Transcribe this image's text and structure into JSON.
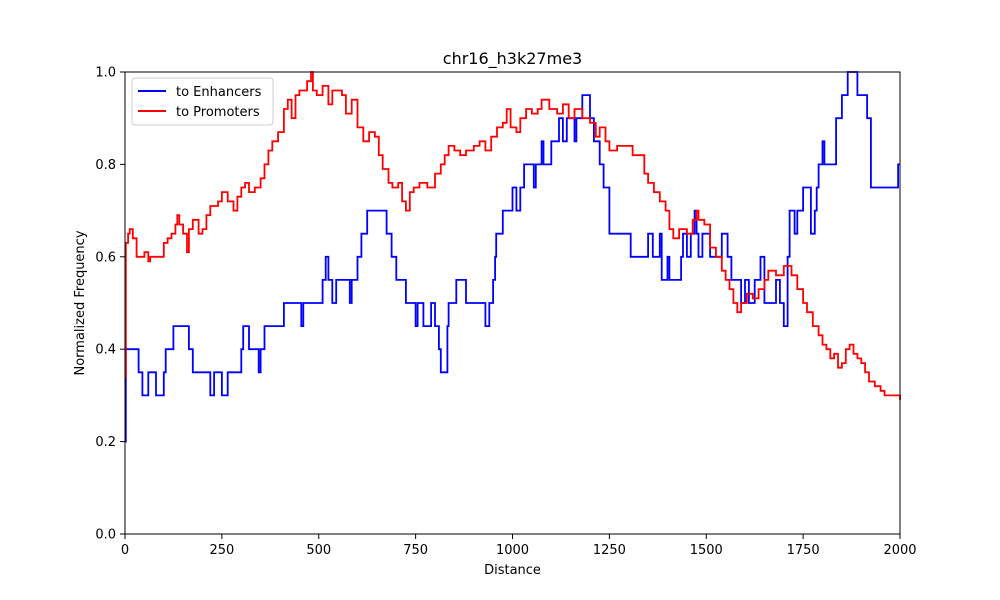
{
  "chart_data": {
    "type": "line",
    "title": "chr16_h3k27me3",
    "xlabel": "Distance",
    "ylabel": "Normalized Frequency",
    "xlim": [
      0,
      2000
    ],
    "ylim": [
      0.0,
      1.0
    ],
    "xticks": [
      0,
      250,
      500,
      750,
      1000,
      1250,
      1500,
      1750,
      2000
    ],
    "xtick_labels": [
      "0",
      "250",
      "500",
      "750",
      "1000",
      "1250",
      "1500",
      "1750",
      "2000"
    ],
    "yticks": [
      0.0,
      0.2,
      0.4,
      0.6,
      0.8,
      1.0
    ],
    "ytick_labels": [
      "0.0",
      "0.2",
      "0.4",
      "0.6",
      "0.8",
      "1.0"
    ],
    "grid": false,
    "legend_position": "upper-left",
    "series": [
      {
        "name": "to Enhancers",
        "color": "#0000ff",
        "step": true,
        "points": [
          [
            0,
            0.2
          ],
          [
            2,
            0.4
          ],
          [
            25,
            0.4
          ],
          [
            35,
            0.35
          ],
          [
            45,
            0.3
          ],
          [
            60,
            0.35
          ],
          [
            80,
            0.3
          ],
          [
            95,
            0.3
          ],
          [
            100,
            0.35
          ],
          [
            105,
            0.4
          ],
          [
            125,
            0.45
          ],
          [
            165,
            0.4
          ],
          [
            175,
            0.35
          ],
          [
            220,
            0.3
          ],
          [
            230,
            0.35
          ],
          [
            250,
            0.3
          ],
          [
            265,
            0.35
          ],
          [
            300,
            0.4
          ],
          [
            305,
            0.45
          ],
          [
            320,
            0.4
          ],
          [
            345,
            0.35
          ],
          [
            350,
            0.4
          ],
          [
            360,
            0.45
          ],
          [
            410,
            0.5
          ],
          [
            455,
            0.45
          ],
          [
            460,
            0.5
          ],
          [
            510,
            0.55
          ],
          [
            518,
            0.6
          ],
          [
            525,
            0.55
          ],
          [
            535,
            0.5
          ],
          [
            545,
            0.55
          ],
          [
            580,
            0.5
          ],
          [
            585,
            0.55
          ],
          [
            600,
            0.6
          ],
          [
            610,
            0.65
          ],
          [
            625,
            0.7
          ],
          [
            675,
            0.65
          ],
          [
            688,
            0.6
          ],
          [
            700,
            0.55
          ],
          [
            725,
            0.5
          ],
          [
            750,
            0.45
          ],
          [
            755,
            0.5
          ],
          [
            770,
            0.45
          ],
          [
            790,
            0.5
          ],
          [
            800,
            0.45
          ],
          [
            810,
            0.4
          ],
          [
            815,
            0.35
          ],
          [
            832,
            0.45
          ],
          [
            835,
            0.5
          ],
          [
            855,
            0.55
          ],
          [
            880,
            0.5
          ],
          [
            930,
            0.45
          ],
          [
            940,
            0.5
          ],
          [
            950,
            0.55
          ],
          [
            955,
            0.6
          ],
          [
            958,
            0.65
          ],
          [
            975,
            0.7
          ],
          [
            1000,
            0.75
          ],
          [
            1010,
            0.7
          ],
          [
            1020,
            0.75
          ],
          [
            1030,
            0.8
          ],
          [
            1055,
            0.75
          ],
          [
            1060,
            0.8
          ],
          [
            1075,
            0.85
          ],
          [
            1080,
            0.8
          ],
          [
            1100,
            0.85
          ],
          [
            1120,
            0.9
          ],
          [
            1130,
            0.85
          ],
          [
            1140,
            0.9
          ],
          [
            1160,
            0.85
          ],
          [
            1165,
            0.9
          ],
          [
            1180,
            0.95
          ],
          [
            1200,
            0.9
          ],
          [
            1210,
            0.85
          ],
          [
            1225,
            0.8
          ],
          [
            1235,
            0.75
          ],
          [
            1250,
            0.65
          ],
          [
            1305,
            0.6
          ],
          [
            1350,
            0.65
          ],
          [
            1362,
            0.6
          ],
          [
            1380,
            0.65
          ],
          [
            1385,
            0.55
          ],
          [
            1400,
            0.6
          ],
          [
            1405,
            0.55
          ],
          [
            1435,
            0.6
          ],
          [
            1440,
            0.65
          ],
          [
            1450,
            0.6
          ],
          [
            1460,
            0.65
          ],
          [
            1470,
            0.7
          ],
          [
            1475,
            0.65
          ],
          [
            1480,
            0.6
          ],
          [
            1490,
            0.65
          ],
          [
            1510,
            0.6
          ],
          [
            1540,
            0.65
          ],
          [
            1555,
            0.6
          ],
          [
            1565,
            0.55
          ],
          [
            1590,
            0.5
          ],
          [
            1600,
            0.55
          ],
          [
            1610,
            0.5
          ],
          [
            1625,
            0.55
          ],
          [
            1640,
            0.6
          ],
          [
            1650,
            0.5
          ],
          [
            1680,
            0.55
          ],
          [
            1690,
            0.5
          ],
          [
            1700,
            0.45
          ],
          [
            1710,
            0.6
          ],
          [
            1715,
            0.7
          ],
          [
            1728,
            0.65
          ],
          [
            1735,
            0.7
          ],
          [
            1750,
            0.75
          ],
          [
            1770,
            0.65
          ],
          [
            1780,
            0.7
          ],
          [
            1785,
            0.75
          ],
          [
            1790,
            0.8
          ],
          [
            1800,
            0.85
          ],
          [
            1805,
            0.8
          ],
          [
            1825,
            0.8
          ],
          [
            1835,
            0.9
          ],
          [
            1850,
            0.95
          ],
          [
            1865,
            1.0
          ],
          [
            1890,
            0.95
          ],
          [
            1915,
            0.9
          ],
          [
            1925,
            0.75
          ],
          [
            1995,
            0.8
          ],
          [
            2000,
            0.8
          ]
        ]
      },
      {
        "name": "to Promoters",
        "color": "#ff0000",
        "step": true,
        "points": [
          [
            0,
            0.34
          ],
          [
            2,
            0.63
          ],
          [
            8,
            0.65
          ],
          [
            12,
            0.66
          ],
          [
            20,
            0.64
          ],
          [
            30,
            0.6
          ],
          [
            40,
            0.6
          ],
          [
            50,
            0.61
          ],
          [
            60,
            0.59
          ],
          [
            65,
            0.6
          ],
          [
            80,
            0.6
          ],
          [
            95,
            0.6
          ],
          [
            100,
            0.63
          ],
          [
            110,
            0.64
          ],
          [
            120,
            0.65
          ],
          [
            130,
            0.67
          ],
          [
            135,
            0.69
          ],
          [
            140,
            0.67
          ],
          [
            150,
            0.65
          ],
          [
            160,
            0.61
          ],
          [
            165,
            0.66
          ],
          [
            175,
            0.68
          ],
          [
            190,
            0.65
          ],
          [
            200,
            0.66
          ],
          [
            210,
            0.69
          ],
          [
            220,
            0.71
          ],
          [
            240,
            0.72
          ],
          [
            250,
            0.74
          ],
          [
            265,
            0.72
          ],
          [
            280,
            0.7
          ],
          [
            290,
            0.73
          ],
          [
            300,
            0.75
          ],
          [
            310,
            0.76
          ],
          [
            320,
            0.74
          ],
          [
            335,
            0.75
          ],
          [
            350,
            0.77
          ],
          [
            360,
            0.8
          ],
          [
            370,
            0.83
          ],
          [
            380,
            0.85
          ],
          [
            395,
            0.87
          ],
          [
            410,
            0.92
          ],
          [
            420,
            0.94
          ],
          [
            430,
            0.9
          ],
          [
            440,
            0.95
          ],
          [
            450,
            0.96
          ],
          [
            470,
            0.98
          ],
          [
            480,
            1.0
          ],
          [
            485,
            0.96
          ],
          [
            495,
            0.95
          ],
          [
            510,
            0.97
          ],
          [
            525,
            0.93
          ],
          [
            535,
            0.96
          ],
          [
            560,
            0.95
          ],
          [
            570,
            0.91
          ],
          [
            585,
            0.94
          ],
          [
            600,
            0.88
          ],
          [
            615,
            0.85
          ],
          [
            630,
            0.87
          ],
          [
            645,
            0.86
          ],
          [
            655,
            0.82
          ],
          [
            665,
            0.79
          ],
          [
            680,
            0.76
          ],
          [
            690,
            0.75
          ],
          [
            705,
            0.76
          ],
          [
            715,
            0.72
          ],
          [
            725,
            0.7
          ],
          [
            735,
            0.74
          ],
          [
            745,
            0.75
          ],
          [
            760,
            0.76
          ],
          [
            780,
            0.75
          ],
          [
            800,
            0.78
          ],
          [
            815,
            0.8
          ],
          [
            825,
            0.82
          ],
          [
            835,
            0.84
          ],
          [
            850,
            0.83
          ],
          [
            865,
            0.82
          ],
          [
            880,
            0.83
          ],
          [
            900,
            0.84
          ],
          [
            915,
            0.85
          ],
          [
            930,
            0.83
          ],
          [
            945,
            0.86
          ],
          [
            960,
            0.88
          ],
          [
            975,
            0.89
          ],
          [
            985,
            0.92
          ],
          [
            995,
            0.88
          ],
          [
            1010,
            0.87
          ],
          [
            1020,
            0.9
          ],
          [
            1035,
            0.92
          ],
          [
            1050,
            0.91
          ],
          [
            1065,
            0.92
          ],
          [
            1075,
            0.94
          ],
          [
            1095,
            0.92
          ],
          [
            1115,
            0.91
          ],
          [
            1130,
            0.93
          ],
          [
            1145,
            0.9
          ],
          [
            1160,
            0.92
          ],
          [
            1180,
            0.9
          ],
          [
            1200,
            0.89
          ],
          [
            1215,
            0.86
          ],
          [
            1225,
            0.88
          ],
          [
            1240,
            0.85
          ],
          [
            1250,
            0.83
          ],
          [
            1270,
            0.84
          ],
          [
            1290,
            0.84
          ],
          [
            1310,
            0.82
          ],
          [
            1330,
            0.82
          ],
          [
            1340,
            0.78
          ],
          [
            1350,
            0.76
          ],
          [
            1365,
            0.74
          ],
          [
            1380,
            0.72
          ],
          [
            1395,
            0.7
          ],
          [
            1405,
            0.66
          ],
          [
            1415,
            0.64
          ],
          [
            1430,
            0.66
          ],
          [
            1450,
            0.65
          ],
          [
            1465,
            0.68
          ],
          [
            1475,
            0.7
          ],
          [
            1480,
            0.68
          ],
          [
            1495,
            0.67
          ],
          [
            1510,
            0.62
          ],
          [
            1525,
            0.6
          ],
          [
            1540,
            0.57
          ],
          [
            1550,
            0.55
          ],
          [
            1560,
            0.53
          ],
          [
            1570,
            0.5
          ],
          [
            1580,
            0.48
          ],
          [
            1590,
            0.5
          ],
          [
            1605,
            0.52
          ],
          [
            1620,
            0.51
          ],
          [
            1635,
            0.53
          ],
          [
            1650,
            0.55
          ],
          [
            1660,
            0.57
          ],
          [
            1680,
            0.56
          ],
          [
            1700,
            0.58
          ],
          [
            1720,
            0.56
          ],
          [
            1735,
            0.53
          ],
          [
            1750,
            0.5
          ],
          [
            1760,
            0.48
          ],
          [
            1775,
            0.45
          ],
          [
            1790,
            0.43
          ],
          [
            1800,
            0.41
          ],
          [
            1810,
            0.4
          ],
          [
            1820,
            0.38
          ],
          [
            1830,
            0.39
          ],
          [
            1840,
            0.36
          ],
          [
            1850,
            0.37
          ],
          [
            1860,
            0.4
          ],
          [
            1870,
            0.41
          ],
          [
            1880,
            0.39
          ],
          [
            1890,
            0.38
          ],
          [
            1900,
            0.37
          ],
          [
            1910,
            0.35
          ],
          [
            1920,
            0.33
          ],
          [
            1935,
            0.32
          ],
          [
            1950,
            0.31
          ],
          [
            1960,
            0.3
          ],
          [
            1975,
            0.3
          ],
          [
            2000,
            0.29
          ]
        ]
      }
    ]
  }
}
